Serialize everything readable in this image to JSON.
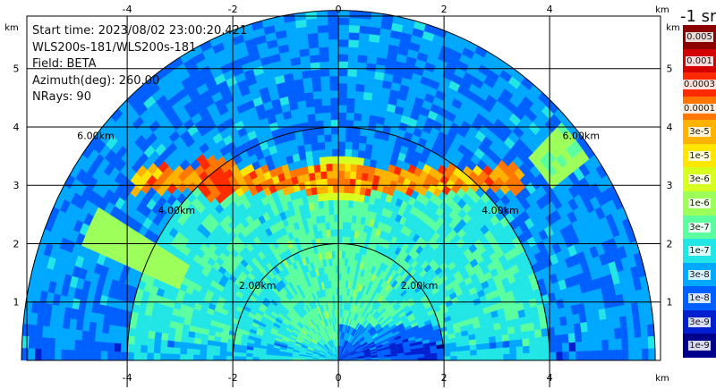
{
  "info": {
    "start_time": "Start time: 2023/08/02 23:00:20.421",
    "instrument": "WLS200s-181/WLS200s-181",
    "field": "Field: BETA",
    "azimuth": "Azimuth(deg): 260.00",
    "nrays": "NRays: 90"
  },
  "colorbar": {
    "unit_label": "-1 sr",
    "ticks": [
      "0.005",
      "0.001",
      "0.0003",
      "0.0001",
      "3e-5",
      "1e-5",
      "3e-6",
      "1e-6",
      "3e-7",
      "1e-7",
      "3e-8",
      "1e-8",
      "3e-9",
      "1e-9"
    ],
    "colors": [
      "#8b0000",
      "#d40000",
      "#ff2a00",
      "#ff7700",
      "#ffb300",
      "#ffe600",
      "#d7ff1f",
      "#9dff5a",
      "#5bffa0",
      "#22e6e6",
      "#00a8ff",
      "#0060ff",
      "#0020d0",
      "#00008b"
    ]
  },
  "chart_data": {
    "type": "heatmap",
    "projection": "RHI (range-height indicator)",
    "x_unit": "km",
    "y_unit": "km",
    "x_ticks": [
      -4,
      -2,
      0,
      2,
      4
    ],
    "y_ticks": [
      1,
      2,
      3,
      4,
      5
    ],
    "xlim": [
      -5.9,
      6.1
    ],
    "ylim": [
      0,
      5.9
    ],
    "range_rings": [
      {
        "range_km": 2,
        "label": "2.00km"
      },
      {
        "range_km": 4,
        "label": "4.00km"
      },
      {
        "range_km": 6,
        "label": "6.00km"
      }
    ],
    "max_range_km": 6.0,
    "grid": true,
    "features": [
      {
        "description": "elevated aerosol/cloud layer",
        "height_km": 3.1,
        "x_range_km": [
          -3.9,
          3.4
        ],
        "beta_peak": 0.001
      },
      {
        "description": "background boundary layer",
        "height_km_max": 3.0,
        "beta_typical": 3e-07
      }
    ]
  }
}
